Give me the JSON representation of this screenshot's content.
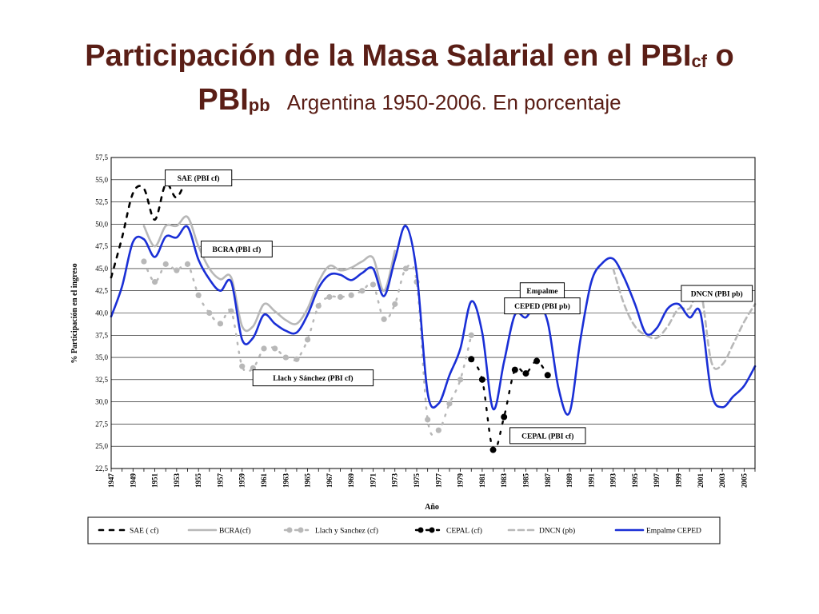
{
  "slide": {
    "title_part1": "Participación de la Masa Salarial en el PBI",
    "title_sub1": "cf",
    "title_part2": " o",
    "title_part3": "PBI",
    "title_sub2": "pb",
    "subtitle": "Argentina 1950-2006. En porcentaje"
  },
  "chart_data": {
    "type": "line",
    "xlabel": "Año",
    "ylabel": "% Participación en el ingreso",
    "xlim": [
      1947,
      2006
    ],
    "ylim": [
      22.5,
      57.5
    ],
    "y_ticks": [
      "22,5",
      "25,0",
      "27,5",
      "30,0",
      "32,5",
      "35,0",
      "37,5",
      "40,0",
      "42,5",
      "45,0",
      "47,5",
      "50,0",
      "52,5",
      "55,0",
      "57,5"
    ],
    "x_ticks": [
      "1947",
      "1949",
      "1951",
      "1953",
      "1955",
      "1957",
      "1959",
      "1961",
      "1963",
      "1965",
      "1967",
      "1969",
      "1971",
      "1973",
      "1975",
      "1977",
      "1979",
      "1981",
      "1983",
      "1985",
      "1987",
      "1989",
      "1991",
      "1993",
      "1995",
      "1997",
      "1999",
      "2001",
      "2003",
      "2005"
    ],
    "grid": "horizontal",
    "legend_position": "bottom",
    "annotations": [
      {
        "text": "SAE (PBI cf)",
        "x": 1955,
        "y": 55.2
      },
      {
        "text": "BCRA (PBI cf)",
        "x": 1958.5,
        "y": 47.2
      },
      {
        "text": "Empalme",
        "x": 1986.5,
        "y": 42.5
      },
      {
        "text": "CEPED (PBI pb)",
        "x": 1986.5,
        "y": 40.8
      },
      {
        "text": "DNCN (PBI pb)",
        "x": 2002.5,
        "y": 42.2
      },
      {
        "text": "Llach y Sánchez (PBI cf)",
        "x": 1965.5,
        "y": 32.7
      },
      {
        "text": "CEPAL (PBI cf)",
        "x": 1987,
        "y": 26.2
      }
    ],
    "series": [
      {
        "name": "SAE ( cf)",
        "color": "#000000",
        "style": "dash",
        "x": [
          1947,
          1948,
          1949,
          1950,
          1951,
          1952,
          1953,
          1954
        ],
        "values": [
          44.0,
          48.5,
          53.5,
          54.0,
          50.5,
          54.5,
          53.0,
          55.5
        ]
      },
      {
        "name": "BCRA(cf)",
        "color": "#b8b8b8",
        "style": "solid",
        "x": [
          1950,
          1951,
          1952,
          1953,
          1954,
          1955,
          1956,
          1957,
          1958,
          1959,
          1960,
          1961,
          1962,
          1963,
          1964,
          1965,
          1966,
          1967,
          1968,
          1969,
          1970,
          1971,
          1972,
          1973
        ],
        "values": [
          49.8,
          47.5,
          49.8,
          49.8,
          50.8,
          47.5,
          45.0,
          43.8,
          44.0,
          38.5,
          38.5,
          41.0,
          40.2,
          39.2,
          38.8,
          40.5,
          43.5,
          45.3,
          44.8,
          45.1,
          45.8,
          46.2,
          42.5,
          47.0
        ]
      },
      {
        "name": "Llach y Sanchez (cf)",
        "color": "#b8b8b8",
        "style": "dot",
        "x": [
          1950,
          1951,
          1952,
          1953,
          1954,
          1955,
          1956,
          1957,
          1958,
          1959,
          1960,
          1961,
          1962,
          1963,
          1964,
          1965,
          1966,
          1967,
          1968,
          1969,
          1970,
          1971,
          1972,
          1973,
          1974,
          1975,
          1976,
          1977,
          1978,
          1979,
          1980
        ],
        "values": [
          45.8,
          43.5,
          45.5,
          44.8,
          45.5,
          42.0,
          40.0,
          38.8,
          40.2,
          34.0,
          33.8,
          36.0,
          36.0,
          35.0,
          34.8,
          37.0,
          40.8,
          41.8,
          41.8,
          42.0,
          42.5,
          43.2,
          39.3,
          41.0,
          45.0,
          43.5,
          28.0,
          26.8,
          29.8,
          32.5,
          37.5
        ]
      },
      {
        "name": "CEPAL (cf)",
        "color": "#000000",
        "style": "dashdot",
        "x": [
          1980,
          1981,
          1982,
          1983,
          1984,
          1985,
          1986,
          1987
        ],
        "values": [
          34.8,
          32.5,
          24.6,
          28.3,
          33.6,
          33.2,
          34.6,
          33.0
        ]
      },
      {
        "name": "DNCN (pb)",
        "color": "#b8b8b8",
        "style": "dash",
        "x": [
          1993,
          1994,
          1995,
          1996,
          1997,
          1998,
          1999,
          2000,
          2001,
          2002,
          2003,
          2004,
          2005,
          2006
        ],
        "values": [
          45.0,
          41.0,
          38.5,
          37.5,
          37.2,
          38.5,
          40.5,
          40.5,
          42.5,
          34.5,
          34.2,
          36.5,
          39.0,
          41.0
        ]
      },
      {
        "name": "Empalme CEPED",
        "color": "#1a2fd6",
        "style": "solid",
        "x": [
          1947,
          1948,
          1949,
          1950,
          1951,
          1952,
          1953,
          1954,
          1955,
          1956,
          1957,
          1958,
          1959,
          1960,
          1961,
          1962,
          1963,
          1964,
          1965,
          1966,
          1967,
          1968,
          1969,
          1970,
          1971,
          1972,
          1973,
          1974,
          1975,
          1976,
          1977,
          1978,
          1979,
          1980,
          1981,
          1982,
          1983,
          1984,
          1985,
          1986,
          1987,
          1988,
          1989,
          1990,
          1991,
          1992,
          1993,
          1994,
          1995,
          1996,
          1997,
          1998,
          1999,
          2000,
          2001,
          2002,
          2003,
          2004,
          2005,
          2006
        ],
        "values": [
          39.6,
          43.0,
          48.0,
          48.3,
          46.3,
          48.6,
          48.5,
          49.7,
          46.0,
          43.8,
          42.5,
          43.5,
          37.0,
          37.2,
          39.8,
          38.8,
          38.0,
          37.8,
          39.8,
          42.8,
          44.3,
          44.3,
          43.7,
          44.5,
          45.0,
          41.9,
          46.0,
          49.8,
          44.5,
          31.0,
          29.8,
          33.0,
          36.0,
          41.3,
          37.8,
          29.2,
          34.5,
          39.8,
          39.5,
          41.0,
          39.0,
          31.5,
          28.8,
          37.0,
          43.5,
          45.6,
          46.1,
          44.0,
          41.0,
          37.7,
          38.3,
          40.5,
          41.0,
          39.5,
          40.0,
          31.0,
          29.4,
          30.6,
          31.8,
          34.0
        ]
      }
    ]
  }
}
